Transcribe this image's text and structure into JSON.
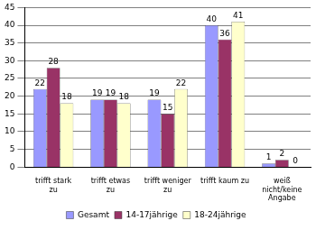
{
  "chart_data": {
    "type": "bar",
    "categories": [
      "trifft stark zu",
      "trifft etwas zu",
      "trifft weniger zu",
      "trifft kaum zu",
      "weiß nicht/keine Angabe"
    ],
    "series": [
      {
        "name": "Gesamt",
        "color": "#9999ff",
        "values": [
          22,
          19,
          19,
          40,
          1
        ]
      },
      {
        "name": "14-17jährige",
        "color": "#993366",
        "values": [
          28,
          19,
          15,
          36,
          2
        ]
      },
      {
        "name": "18-24jährige",
        "color": "#ffffcc",
        "values": [
          18,
          18,
          22,
          41,
          0
        ]
      }
    ],
    "ylim": [
      0,
      45
    ],
    "yticks": [
      0,
      5,
      10,
      15,
      20,
      25,
      30,
      35,
      40,
      45
    ],
    "grid": true,
    "legend": "bottom",
    "data_labels": true
  }
}
